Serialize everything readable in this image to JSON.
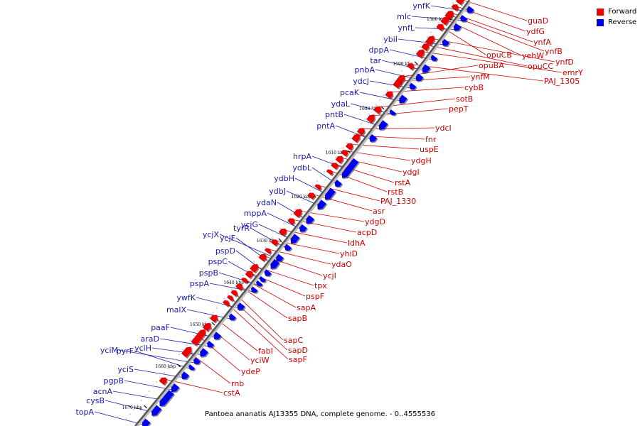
{
  "legend": {
    "items": [
      {
        "label": "Forward",
        "color": "#ee0000"
      },
      {
        "label": "Reverse",
        "color": "#0000ee"
      }
    ]
  },
  "caption": "Pantoea ananatis AJ13355 DNA, complete genome. - 0..4555536",
  "ticks": [
    "1580 kbp",
    "1590 kbp",
    "1600 kbp",
    "1610 kbp",
    "1620 kbp",
    "1630 kbp",
    "1640 kbp",
    "1650 kbp",
    "1660 kbp",
    "1670 kbp"
  ],
  "genes": {
    "reverse": [
      "ynfK",
      "mlc",
      "ynfL",
      "ybiI",
      "dppA",
      "tar",
      "pnbA",
      "ydcJ",
      "pcaK",
      "ydaL",
      "pntB",
      "pntA",
      "hrpA",
      "ydbL",
      "ydbH",
      "ydbJ",
      "ydaN",
      "mppA",
      "ycjG",
      "tyrR",
      "ycjX",
      "ycjF",
      "pspD",
      "pspC",
      "pspB",
      "pspA",
      "ywfK",
      "malX",
      "paaF",
      "araD",
      "yciH",
      "yciM",
      "pyrF",
      "yciS",
      "pgpB",
      "acnA",
      "cysB",
      "topA"
    ],
    "forward": [
      "guaD",
      "ydfG",
      "ynfA",
      "ynfB",
      "yehW",
      "opuCB",
      "ynfD",
      "opuCC",
      "emrY",
      "PAJ_1305",
      "opuBA",
      "ynfM",
      "cybB",
      "sotB",
      "pepT",
      "ydcI",
      "fnr",
      "uspE",
      "ydgH",
      "ydgI",
      "rstA",
      "rstB",
      "PAJ_1330",
      "asr",
      "ydgD",
      "acpD",
      "ldhA",
      "yhiD",
      "ydaO",
      "ycjI",
      "tpx",
      "pspF",
      "sapA",
      "sapB",
      "sapC",
      "sapD",
      "sapF",
      "fabI",
      "yciW",
      "ydeP",
      "rnb",
      "cstA"
    ]
  }
}
